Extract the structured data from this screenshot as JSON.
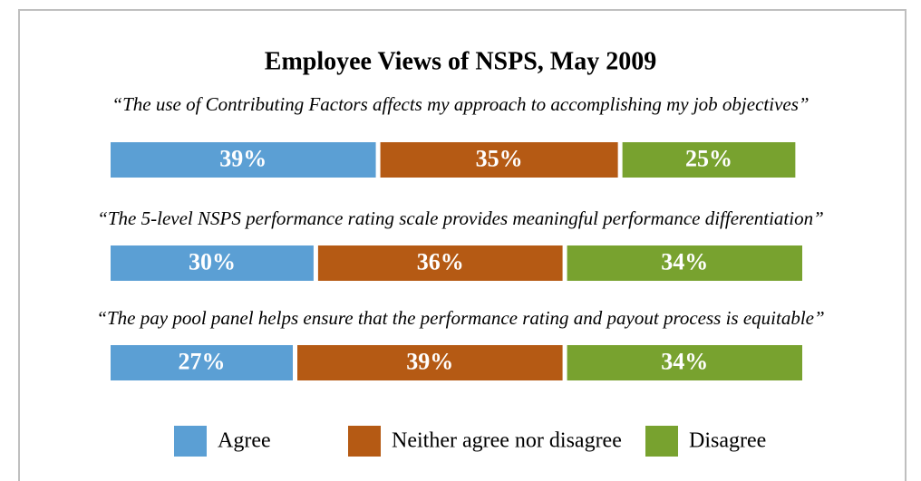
{
  "chart_data": {
    "type": "stacked-bar",
    "title": "Employee Views of NSPS, May 2009",
    "categories": [
      "“The use of Contributing Factors affects my approach to accomplishing my job objectives”",
      "“The 5-level NSPS performance rating scale provides meaningful performance differentiation”",
      "“The pay pool panel helps ensure that the performance rating and payout process is equitable”"
    ],
    "series": [
      {
        "name": "Agree",
        "color": "#5b9fd4",
        "values": [
          39,
          30,
          27
        ],
        "value_labels": [
          "39%",
          "30%",
          "27%"
        ]
      },
      {
        "name": "Neither agree nor disagree",
        "color": "#b55a14",
        "values": [
          35,
          36,
          39
        ],
        "value_labels": [
          "35%",
          "36%",
          "39%"
        ]
      },
      {
        "name": "Disagree",
        "color": "#78a22f",
        "values": [
          25,
          34,
          34
        ],
        "value_labels": [
          "25%",
          "34%",
          "34%"
        ]
      }
    ],
    "xlim": [
      0,
      100
    ]
  }
}
